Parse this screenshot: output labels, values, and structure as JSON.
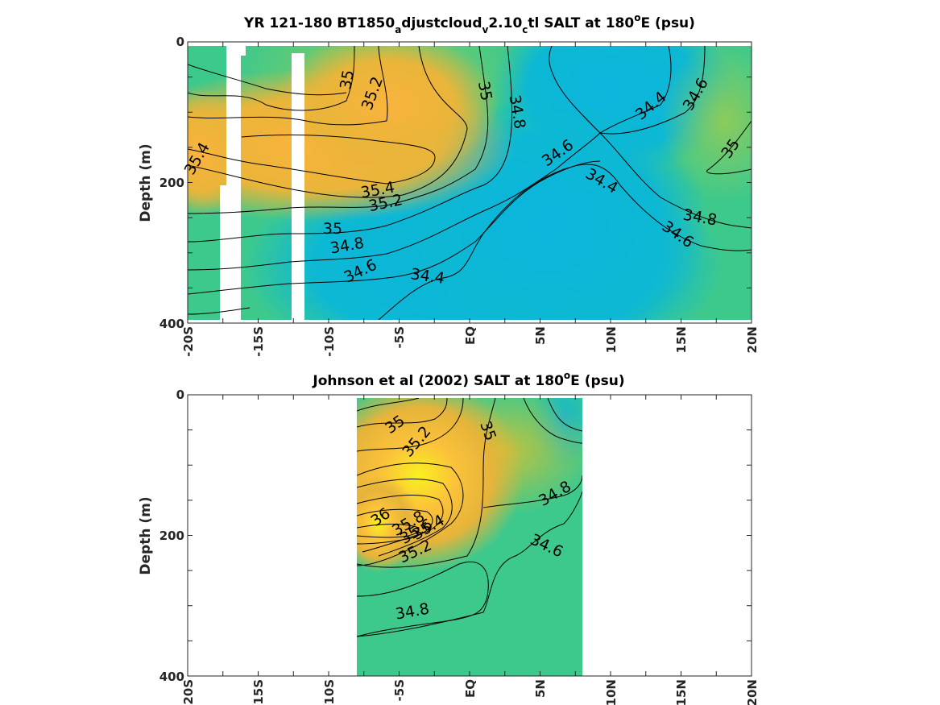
{
  "chart_data": [
    {
      "type": "heatmap",
      "title_parts": {
        "p1": "YR 121-180 BT1850",
        "sub1": "a",
        "p2": "djustcloud",
        "sub2": "v",
        "p3": "2.10",
        "sub3": "c",
        "p4": "tl SALT at 180",
        "sup": "o",
        "p5": "E (psu)"
      },
      "ylabel": "Depth (m)",
      "x_ticks": [
        "-20S",
        "-15S",
        "-10S",
        "-5S",
        "EQ",
        "5N",
        "10N",
        "15N",
        "20N"
      ],
      "y_ticks": [
        "0",
        "200",
        "400"
      ],
      "xlim": [
        -20,
        20
      ],
      "ylim": [
        0,
        400
      ],
      "colors": {
        "high": "#fab43c",
        "mid": "#5dc97a",
        "low": "#0db7d6"
      },
      "contour_labels": [
        "35",
        "35.2",
        "35",
        "34.8",
        "34.4",
        "34.6",
        "35.4",
        "35.4",
        "35.2",
        "35",
        "34.8",
        "34.6",
        "34.4",
        "34.6",
        "34.4",
        "35",
        "34.8",
        "34.6"
      ],
      "contour_values": [
        34.4,
        34.6,
        34.8,
        35,
        35.2,
        35.4
      ]
    },
    {
      "type": "heatmap",
      "title_parts": {
        "p1": "Johnson et al (2002) SALT at 180",
        "sup": "o",
        "p2": "E (psu)"
      },
      "ylabel": "Depth (m)",
      "x_ticks": [
        "-20S",
        "-15S",
        "-10S",
        "-5S",
        "EQ",
        "5N",
        "10N",
        "15N",
        "20N"
      ],
      "y_ticks": [
        "0",
        "200",
        "400"
      ],
      "xlim": [
        -20,
        20
      ],
      "ylim": [
        0,
        400
      ],
      "data_extent_x": [
        -8,
        8
      ],
      "colors": {
        "max": "#f9f11f",
        "high": "#fab43c",
        "mid": "#5dc97a",
        "low": "#0db7d6"
      },
      "contour_labels": [
        "35",
        "35.2",
        "35",
        "36",
        "35.8",
        "35.6",
        "35.4",
        "35.2",
        "34.8",
        "34.6",
        "34.8"
      ],
      "contour_values": [
        34.6,
        34.8,
        35,
        35.2,
        35.4,
        35.6,
        35.8,
        36
      ]
    }
  ]
}
